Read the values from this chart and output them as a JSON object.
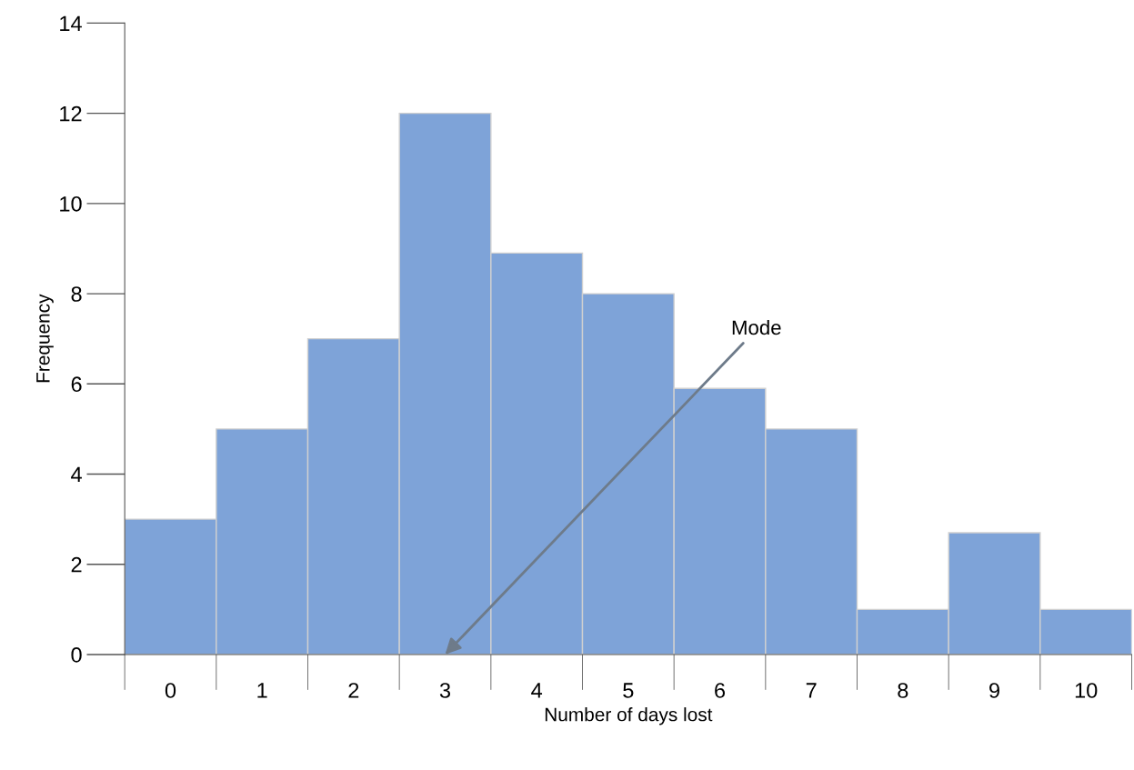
{
  "chart_data": {
    "type": "bar",
    "xlabel": "Number of days lost",
    "ylabel": "Frequency",
    "categories": [
      "0",
      "1",
      "2",
      "3",
      "4",
      "5",
      "6",
      "7",
      "8",
      "9",
      "10"
    ],
    "values": [
      3,
      5,
      7,
      12,
      8.9,
      8,
      5.9,
      5,
      1,
      2.7,
      1
    ],
    "color": "#7ea3d8",
    "ylim": [
      0,
      14
    ],
    "yticks": [
      0,
      2,
      4,
      6,
      8,
      10,
      12,
      14
    ],
    "grid": false,
    "legend": false,
    "annotations": [
      {
        "text": "Mode",
        "x": "3",
        "y": 0
      }
    ]
  }
}
